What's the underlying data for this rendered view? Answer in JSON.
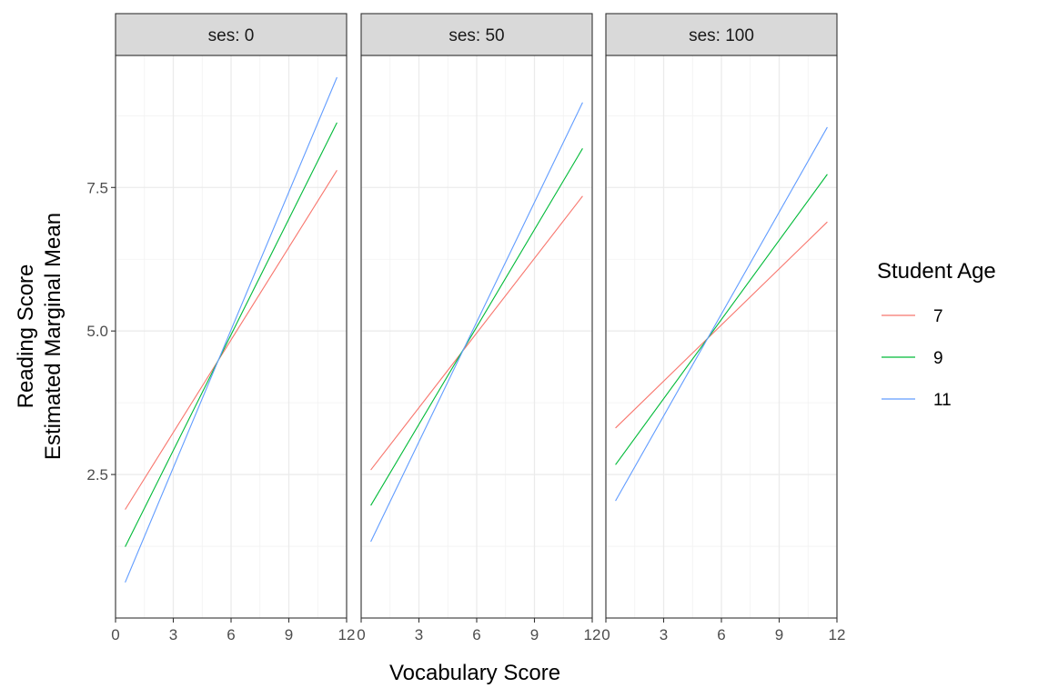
{
  "chart_data": {
    "type": "line",
    "facet_variable": "ses",
    "facets": [
      {
        "strip_label": "ses: 0",
        "series": [
          {
            "name": "7",
            "x": [
              0.5,
              11.5
            ],
            "y": [
              1.89,
              7.8
            ]
          },
          {
            "name": "9",
            "x": [
              0.5,
              11.5
            ],
            "y": [
              1.24,
              8.63
            ]
          },
          {
            "name": "11",
            "x": [
              0.5,
              11.5
            ],
            "y": [
              0.62,
              9.42
            ]
          }
        ]
      },
      {
        "strip_label": "ses: 50",
        "series": [
          {
            "name": "7",
            "x": [
              0.5,
              11.5
            ],
            "y": [
              2.58,
              7.35
            ]
          },
          {
            "name": "9",
            "x": [
              0.5,
              11.5
            ],
            "y": [
              1.96,
              8.18
            ]
          },
          {
            "name": "11",
            "x": [
              0.5,
              11.5
            ],
            "y": [
              1.33,
              8.98
            ]
          }
        ]
      },
      {
        "strip_label": "ses: 100",
        "series": [
          {
            "name": "7",
            "x": [
              0.5,
              11.5
            ],
            "y": [
              3.31,
              6.9
            ]
          },
          {
            "name": "9",
            "x": [
              0.5,
              11.5
            ],
            "y": [
              2.67,
              7.73
            ]
          },
          {
            "name": "11",
            "x": [
              0.5,
              11.5
            ],
            "y": [
              2.04,
              8.55
            ]
          }
        ]
      }
    ],
    "xlabel": "Vocabulary Score",
    "ylabel_lines": [
      "Reading Score",
      "Estimated Marginal Mean"
    ],
    "xlim": [
      0,
      12
    ],
    "ylim": [
      0,
      9.8
    ],
    "x_ticks": [
      0,
      3,
      6,
      9,
      12
    ],
    "x_tick_labels": [
      "0",
      "3",
      "6",
      "9",
      "12"
    ],
    "y_ticks": [
      2.5,
      5.0,
      7.5
    ],
    "y_tick_labels": [
      "2.5",
      "5.0",
      "7.5"
    ],
    "legend": {
      "title": "Student Age",
      "position": "right",
      "entries": [
        {
          "label": "7",
          "color": "#F8766D"
        },
        {
          "label": "9",
          "color": "#00BA38"
        },
        {
          "label": "11",
          "color": "#619CFF"
        }
      ]
    },
    "grid": true,
    "theme": "bw"
  }
}
